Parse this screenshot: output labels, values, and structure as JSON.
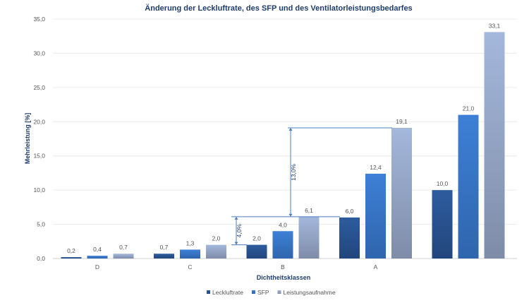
{
  "chart_data": {
    "type": "bar",
    "title": "Änderung der Leckluftrate, des SFP und des Ventilatorleistungsbedarfes",
    "xlabel": "Dichtheitsklassen",
    "ylabel": "Mehrleistung [%]",
    "ylim": [
      0,
      35
    ],
    "yticks": [
      "0,0",
      "5,0",
      "10,0",
      "15,0",
      "20,0",
      "25,0",
      "30,0",
      "35,0"
    ],
    "categories": [
      "D",
      "C",
      "B",
      "A",
      ""
    ],
    "series": [
      {
        "name": "Leckluftrate",
        "color": "#264f8a",
        "values": [
          0.2,
          0.7,
          2.0,
          6.0,
          10.0
        ],
        "labels": [
          "0,2",
          "0,7",
          "2,0",
          "6,0",
          "10,0"
        ]
      },
      {
        "name": "SFP",
        "color": "#3a78c9",
        "values": [
          0.4,
          1.3,
          4.0,
          12.4,
          21.0
        ],
        "labels": [
          "0,4",
          "1,3",
          "4,0",
          "12,4",
          "21,0"
        ]
      },
      {
        "name": "Leistungsaufnahme",
        "color": "#9fb3d6",
        "values": [
          0.7,
          2.0,
          6.1,
          19.1,
          33.1
        ],
        "labels": [
          "0,7",
          "2,0",
          "6,1",
          "19,1",
          "33,1"
        ]
      }
    ],
    "annotations": [
      {
        "text": "4,0%",
        "from": 2.0,
        "to": 6.1
      },
      {
        "text": "13,0%",
        "from": 6.1,
        "to": 19.1
      }
    ],
    "grid": true,
    "legend": "bottom"
  }
}
